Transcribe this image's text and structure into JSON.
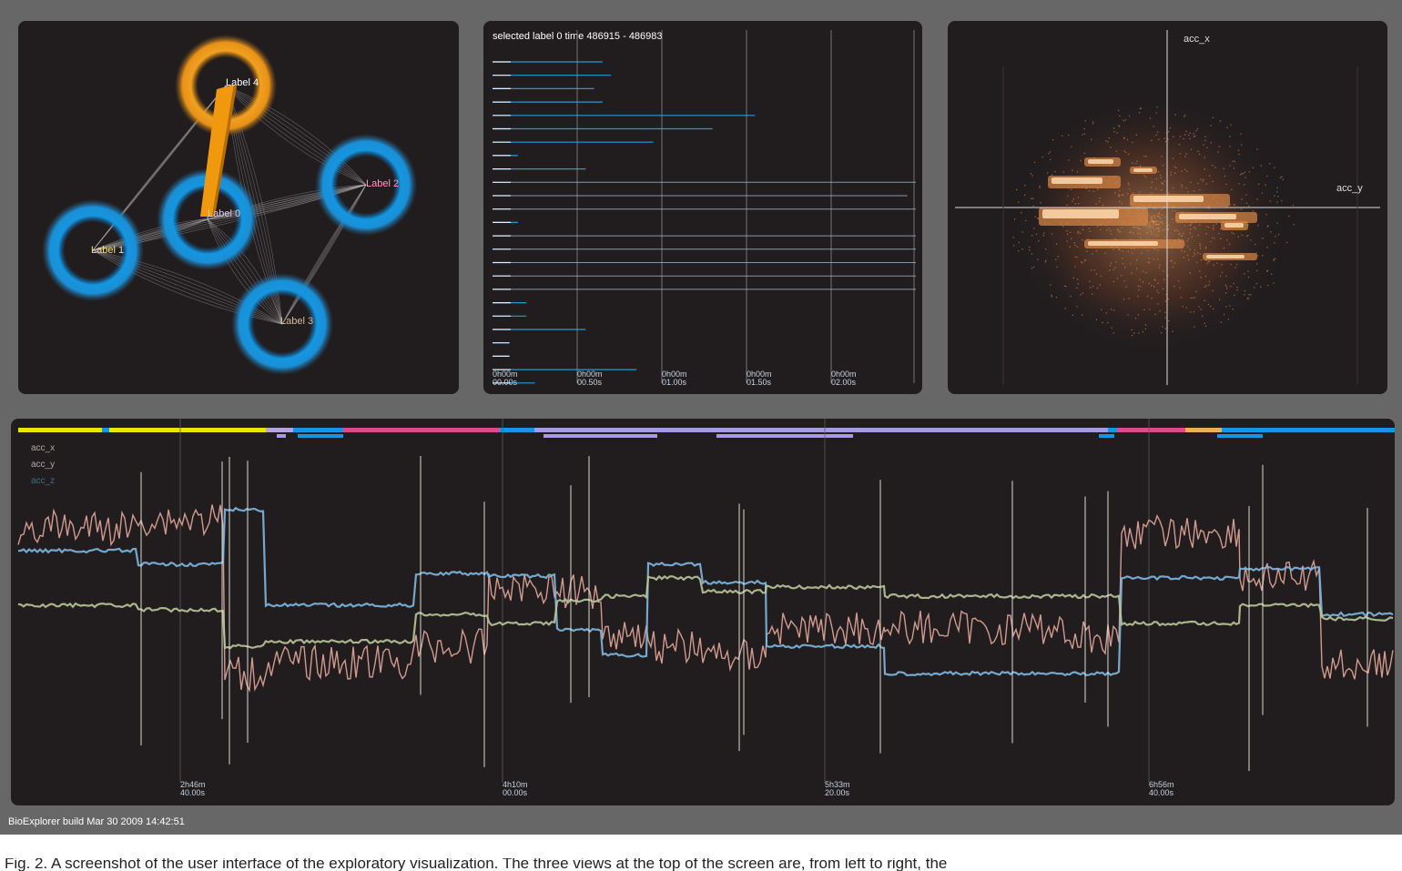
{
  "app": {
    "build_label": "BioExplorer build Mar 30 2009 14:42:51"
  },
  "graph": {
    "nodes": [
      {
        "label": "Label 4",
        "selected": true
      },
      {
        "label": "Label 2",
        "selected": false
      },
      {
        "label": "Label 0",
        "selected": false
      },
      {
        "label": "Label 1",
        "selected": false
      },
      {
        "label": "Label 3",
        "selected": false
      }
    ]
  },
  "timing": {
    "title": "selected label 0 time 486915 - 486983",
    "ticks": [
      [
        "0h00m",
        "00.00s"
      ],
      [
        "0h00m",
        "00.50s"
      ],
      [
        "0h00m",
        "01.00s"
      ],
      [
        "0h00m",
        "01.50s"
      ],
      [
        "0h00m",
        "02.00s"
      ]
    ],
    "row_durations": [
      0.65,
      0.7,
      0.6,
      0.65,
      1.55,
      1.3,
      0.95,
      0.15,
      0.55,
      2.5,
      2.45,
      2.5,
      0.15,
      2.5,
      2.5,
      2.5,
      2.5,
      2.5,
      0.2,
      0.2,
      0.55,
      0.1,
      0.1,
      0.85,
      0.25
    ],
    "colors": {
      "accent": "#2aa7e0",
      "line": "#9fb4c8"
    }
  },
  "scatter": {
    "x_label": "acc_x",
    "y_label": "acc_y",
    "colors": {
      "hot": "#ffd9b0",
      "warm": "#d98746"
    }
  },
  "signals": {
    "legend": [
      "acc_x",
      "acc_y",
      "acc_z"
    ],
    "ticks": [
      [
        "2h46m",
        "40.00s"
      ],
      [
        "4h10m",
        "00.00s"
      ],
      [
        "5h33m",
        "20.00s"
      ],
      [
        "6h56m",
        "40.00s"
      ]
    ],
    "colors": {
      "acc_x": "#e6a99b",
      "acc_y": "#7fb8df",
      "acc_z": "#b9c79a"
    }
  },
  "caption": "Fig. 2. A screenshot of the user interface of the exploratory visualization. The three views at the top of the screen are, from left to right, the"
}
